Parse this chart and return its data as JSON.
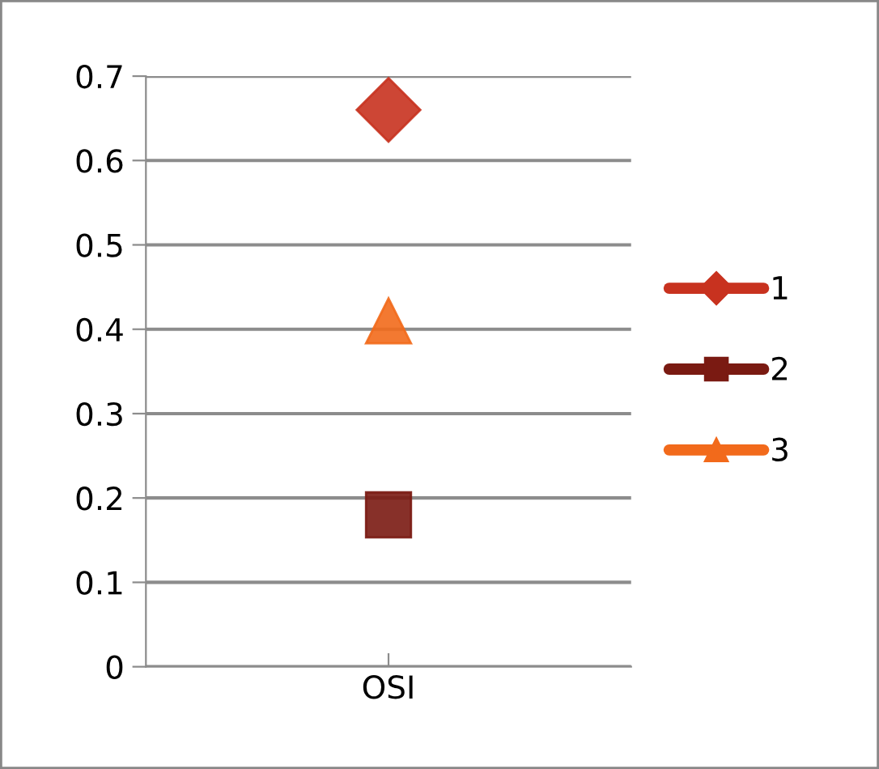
{
  "chart_data": {
    "type": "scatter",
    "categories": [
      "OSI"
    ],
    "series": [
      {
        "name": "1",
        "color": "#c8321f",
        "marker": "diamond",
        "values": [
          0.66
        ]
      },
      {
        "name": "2",
        "color": "#7a1a12",
        "marker": "square",
        "values": [
          0.18
        ]
      },
      {
        "name": "3",
        "color": "#f26a1b",
        "marker": "triangle",
        "values": [
          0.41
        ]
      }
    ],
    "ylim": [
      0,
      0.7
    ],
    "yticks": [
      0,
      0.1,
      0.2,
      0.3,
      0.4,
      0.5,
      0.6,
      0.7
    ],
    "grid": "y",
    "legend": "right"
  }
}
